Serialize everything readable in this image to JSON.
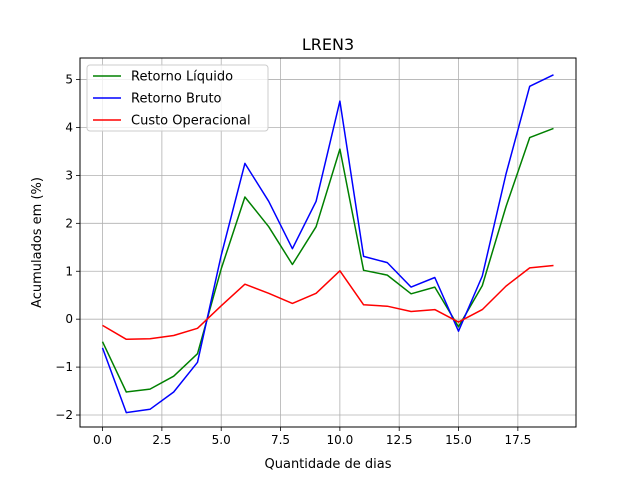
{
  "chart_data": {
    "type": "line",
    "title": "LREN3",
    "xlabel": "Quantidade de dias",
    "ylabel": "Acumulados em (%)",
    "xlim": [
      -0.95,
      19.95
    ],
    "ylim": [
      -2.25,
      5.45
    ],
    "grid": true,
    "legend_position": "top-left",
    "x_ticks": [
      0,
      2.5,
      5,
      7.5,
      10,
      12.5,
      15,
      17.5
    ],
    "x_tick_labels": [
      "0.0",
      "2.5",
      "5.0",
      "7.5",
      "10.0",
      "12.5",
      "15.0",
      "17.5"
    ],
    "y_ticks": [
      -2,
      -1,
      0,
      1,
      2,
      3,
      4,
      5
    ],
    "y_tick_labels": [
      "−2",
      "−1",
      "0",
      "1",
      "2",
      "3",
      "4",
      "5"
    ],
    "x": [
      0,
      1,
      2,
      3,
      4,
      5,
      6,
      7,
      8,
      9,
      10,
      11,
      12,
      13,
      14,
      15,
      16,
      17,
      18,
      19
    ],
    "series": [
      {
        "name": "Retorno Líquido",
        "color": "#008000",
        "values": [
          -0.47,
          -1.52,
          -1.46,
          -1.19,
          -0.72,
          1.05,
          2.55,
          1.93,
          1.14,
          1.93,
          3.55,
          1.02,
          0.92,
          0.53,
          0.67,
          -0.16,
          0.7,
          2.35,
          3.79,
          3.98
        ]
      },
      {
        "name": "Retorno Bruto",
        "color": "#0000ff",
        "values": [
          -0.6,
          -1.95,
          -1.88,
          -1.52,
          -0.9,
          1.33,
          3.25,
          2.46,
          1.47,
          2.46,
          4.55,
          1.31,
          1.18,
          0.67,
          0.87,
          -0.25,
          0.9,
          3.03,
          4.86,
          5.1
        ]
      },
      {
        "name": "Custo Operacional",
        "color": "#ff0000",
        "values": [
          -0.13,
          -0.42,
          -0.41,
          -0.34,
          -0.19,
          0.28,
          0.73,
          0.54,
          0.33,
          0.54,
          1.01,
          0.3,
          0.27,
          0.16,
          0.2,
          -0.06,
          0.2,
          0.69,
          1.07,
          1.12
        ]
      }
    ]
  }
}
